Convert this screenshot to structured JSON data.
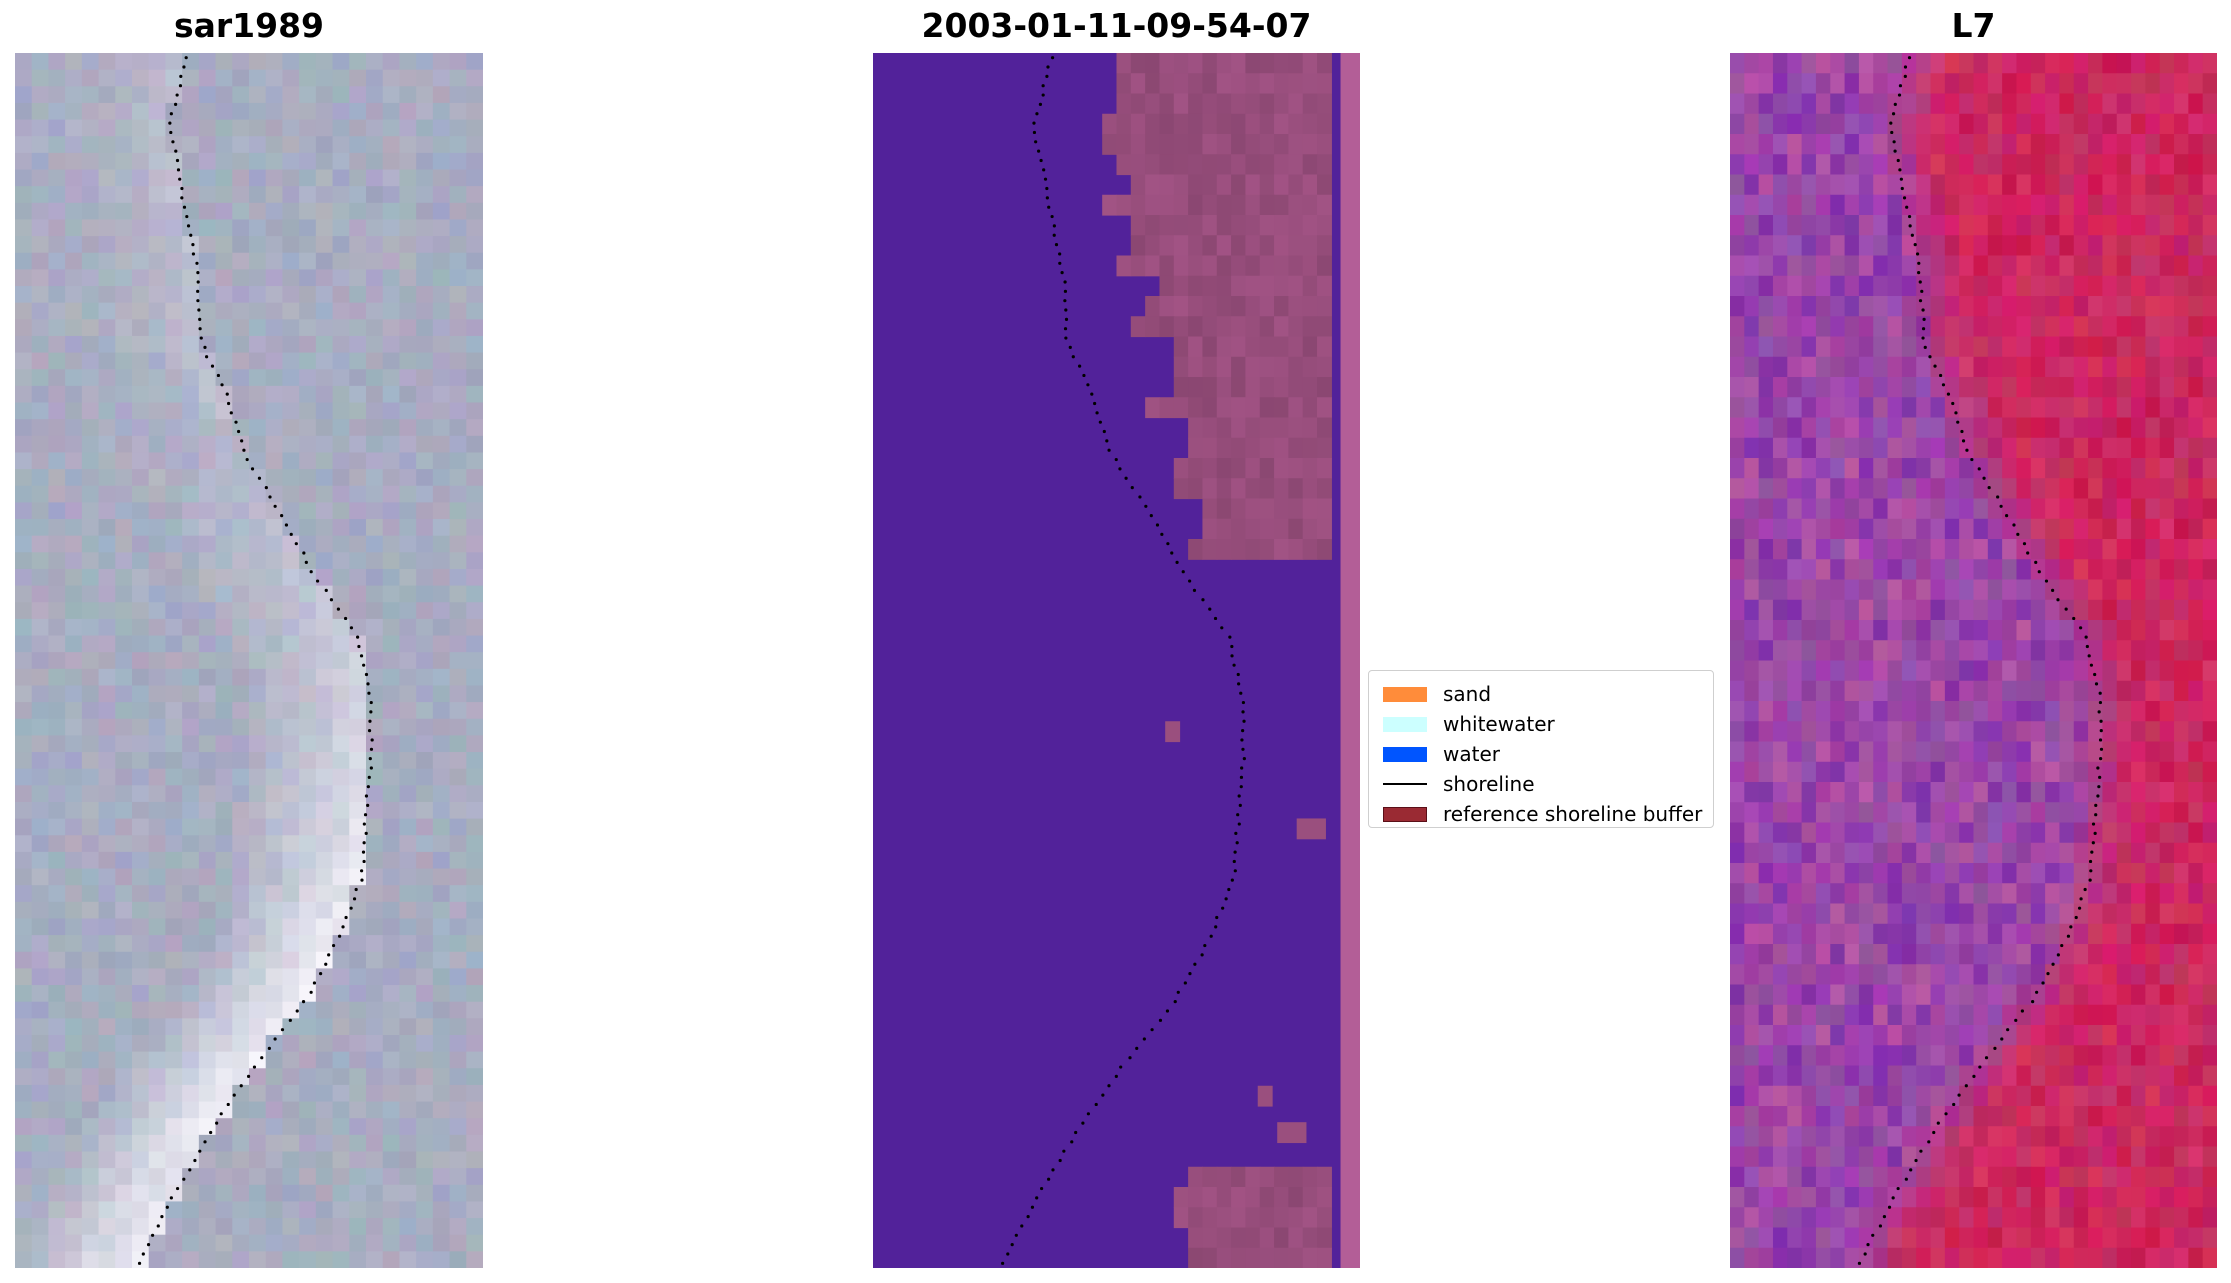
{
  "panels": [
    {
      "title": "sar1989",
      "kind": "rgb-image"
    },
    {
      "title": "2003-01-11-09-54-07",
      "kind": "classification"
    },
    {
      "title": "L7",
      "kind": "index-image"
    }
  ],
  "legend": {
    "items": [
      {
        "label": "sand",
        "color": "#ff8c3a",
        "shape": "patch"
      },
      {
        "label": "whitewater",
        "color": "#ccffff",
        "shape": "patch"
      },
      {
        "label": "water",
        "color": "#0055ff",
        "shape": "patch"
      },
      {
        "label": "shoreline",
        "color": "#000000",
        "shape": "line"
      },
      {
        "label": "reference shoreline buffer",
        "color": "#9a2a33",
        "shape": "patch"
      }
    ]
  },
  "colors": {
    "classification_background": "#52229a",
    "buffer_overlay": "#9a4f7e",
    "l7_sea": "#9b48a8",
    "l7_land": "#cc2a62",
    "sar_base": "#a9adc2"
  }
}
